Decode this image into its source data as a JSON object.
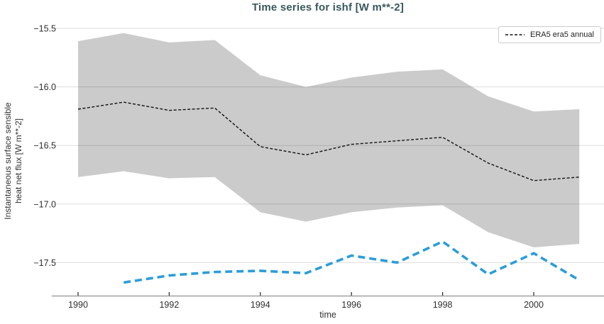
{
  "figure": {
    "title": "Time series for ishf [W m**-2]",
    "title_color": "#38595c"
  },
  "axes": {
    "x": {
      "label": "time",
      "tick_labels": [
        "1990",
        "1992",
        "1994",
        "1996",
        "1998",
        "2000"
      ],
      "tick_values": [
        1990,
        1992,
        1994,
        1996,
        1998,
        2000
      ]
    },
    "y": {
      "label": "Instantaneous surface sensible\nheat net flux [W m**-2]",
      "tick_labels": [
        "−15.5",
        "−16.0",
        "−16.5",
        "−17.0",
        "−17.5"
      ],
      "tick_values": [
        -15.5,
        -16.0,
        -16.5,
        -17.0,
        -17.5
      ]
    }
  },
  "legend": {
    "entries": [
      {
        "label": "ERA5 era5 annual",
        "line_style": "dashed",
        "color": "#111111"
      }
    ]
  },
  "colors": {
    "band": "#cbcbcb",
    "mean_line": "#111111",
    "blue_line": "#2b9dd9",
    "gridline": "rgba(0,0,0,0.13)",
    "spine": "#ababab",
    "tick": "#333333"
  },
  "chart_data": {
    "type": "line",
    "title": "Time series for ishf [W m**-2]",
    "xlabel": "time",
    "ylabel": "Instantaneous surface sensible heat net flux [W m**-2]",
    "xlim": [
      1989.4,
      2001.55
    ],
    "ylim": [
      -17.79,
      -15.44
    ],
    "grid": "horizontal",
    "legend_position": "upper right",
    "series": [
      {
        "name": "ERA5 era5 annual",
        "style": "dashed-thin",
        "color": "#111111",
        "x": [
          1990,
          1991,
          1992,
          1993,
          1994,
          1995,
          1996,
          1997,
          1998,
          1999,
          2000,
          2001
        ],
        "y": [
          -16.19,
          -16.13,
          -16.2,
          -16.18,
          -16.51,
          -16.58,
          -16.49,
          -16.46,
          -16.43,
          -16.65,
          -16.8,
          -16.77
        ]
      },
      {
        "name": "",
        "style": "dashed-thick",
        "color": "#2b9dd9",
        "x": [
          1991,
          1992,
          1993,
          1994,
          1995,
          1996,
          1997,
          1998,
          1999,
          2000,
          2001
        ],
        "y": [
          -17.67,
          -17.61,
          -17.58,
          -17.57,
          -17.59,
          -17.44,
          -17.5,
          -17.32,
          -17.6,
          -17.42,
          -17.65
        ]
      }
    ],
    "band": {
      "attached_to": "ERA5 era5 annual",
      "color": "#cbcbcb",
      "x": [
        1990,
        1991,
        1992,
        1993,
        1994,
        1995,
        1996,
        1997,
        1998,
        1999,
        2000,
        2001
      ],
      "upper": [
        -15.61,
        -15.54,
        -15.62,
        -15.6,
        -15.9,
        -16.0,
        -15.92,
        -15.87,
        -15.85,
        -16.08,
        -16.21,
        -16.19
      ],
      "lower": [
        -16.77,
        -16.72,
        -16.78,
        -16.77,
        -17.07,
        -17.15,
        -17.07,
        -17.03,
        -17.01,
        -17.24,
        -17.37,
        -17.34
      ]
    }
  }
}
